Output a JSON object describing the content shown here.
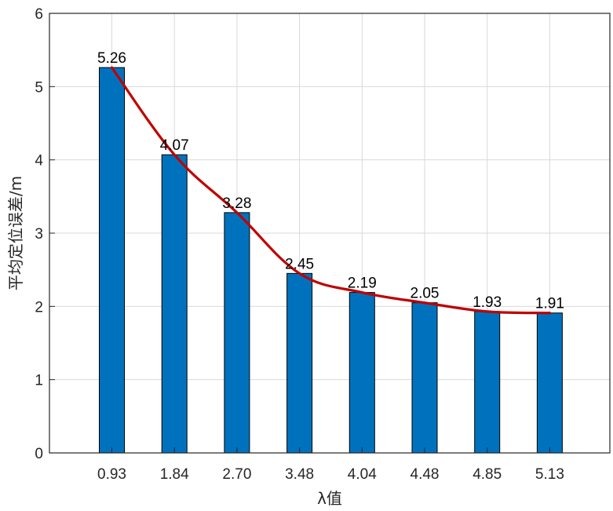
{
  "chart_data": {
    "type": "bar",
    "categories": [
      "0.93",
      "1.84",
      "2.70",
      "3.48",
      "4.04",
      "4.48",
      "4.85",
      "5.13"
    ],
    "values": [
      5.26,
      4.07,
      3.28,
      2.45,
      2.19,
      2.05,
      1.93,
      1.91
    ],
    "data_labels": [
      "5.26",
      "4.07",
      "3.28",
      "2.45",
      "2.19",
      "2.05",
      "1.93",
      "1.91"
    ],
    "xlabel": "λ值",
    "ylabel": "平均定位误差/m",
    "ylim": [
      0,
      6
    ],
    "yticks": [
      "0",
      "1",
      "2",
      "3",
      "4",
      "5",
      "6"
    ],
    "grid": true,
    "overlay_line": true,
    "colors": {
      "bar": "#0072BD",
      "line": "#C00000",
      "grid": "#D9D9D9",
      "axis": "#262626"
    }
  }
}
